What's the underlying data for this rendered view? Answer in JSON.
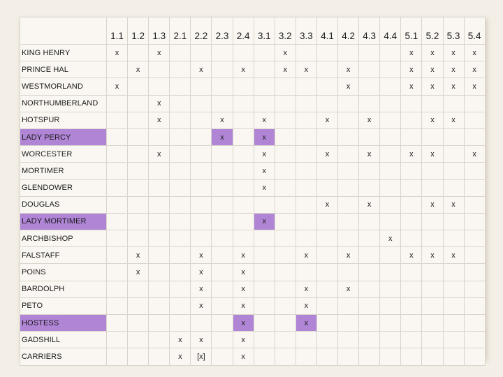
{
  "colors": {
    "highlight": "#b085d6",
    "grid": "#d9d4cc",
    "background": "#f3eee6"
  },
  "scenes": [
    "1.1",
    "1.2",
    "1.3",
    "2.1",
    "2.2",
    "2.3",
    "2.4",
    "3.1",
    "3.2",
    "3.3",
    "4.1",
    "4.2",
    "4.3",
    "4.4",
    "5.1",
    "5.2",
    "5.3",
    "5.4"
  ],
  "characters": [
    {
      "name": "KING HENRY",
      "highlight": false,
      "marks": [
        "x",
        "",
        "x",
        "",
        "",
        "",
        "",
        "",
        "x",
        "",
        "",
        "",
        "",
        "",
        "x",
        "x",
        "x",
        "x"
      ]
    },
    {
      "name": "PRINCE HAL",
      "highlight": false,
      "marks": [
        "",
        "x",
        "",
        "",
        "x",
        "",
        "x",
        "",
        "x",
        "x",
        "",
        "x",
        "",
        "",
        "x",
        "x",
        "x",
        "x"
      ]
    },
    {
      "name": "WESTMORLAND",
      "highlight": false,
      "marks": [
        "x",
        "",
        "",
        "",
        "",
        "",
        "",
        "",
        "",
        "",
        "",
        "x",
        "",
        "",
        "x",
        "x",
        "x",
        "x"
      ]
    },
    {
      "name": "NORTHUMBERLAND",
      "highlight": false,
      "marks": [
        "",
        "",
        "x",
        "",
        "",
        "",
        "",
        "",
        "",
        "",
        "",
        "",
        "",
        "",
        "",
        "",
        "",
        ""
      ]
    },
    {
      "name": "HOTSPUR",
      "highlight": false,
      "marks": [
        "",
        "",
        "x",
        "",
        "",
        "x",
        "",
        "x",
        "",
        "",
        "x",
        "",
        "x",
        "",
        "",
        "x",
        "x",
        ""
      ]
    },
    {
      "name": "LADY PERCY",
      "highlight": true,
      "marks": [
        "",
        "",
        "",
        "",
        "",
        "x",
        "",
        "x",
        "",
        "",
        "",
        "",
        "",
        "",
        "",
        "",
        "",
        ""
      ]
    },
    {
      "name": "WORCESTER",
      "highlight": false,
      "marks": [
        "",
        "",
        "x",
        "",
        "",
        "",
        "",
        "x",
        "",
        "",
        "x",
        "",
        "x",
        "",
        "x",
        "x",
        "",
        "x"
      ]
    },
    {
      "name": "MORTIMER",
      "highlight": false,
      "marks": [
        "",
        "",
        "",
        "",
        "",
        "",
        "",
        "x",
        "",
        "",
        "",
        "",
        "",
        "",
        "",
        "",
        "",
        ""
      ]
    },
    {
      "name": "GLENDOWER",
      "highlight": false,
      "marks": [
        "",
        "",
        "",
        "",
        "",
        "",
        "",
        "x",
        "",
        "",
        "",
        "",
        "",
        "",
        "",
        "",
        "",
        ""
      ]
    },
    {
      "name": "DOUGLAS",
      "highlight": false,
      "marks": [
        "",
        "",
        "",
        "",
        "",
        "",
        "",
        "",
        "",
        "",
        "x",
        "",
        "x",
        "",
        "",
        "x",
        "x",
        ""
      ]
    },
    {
      "name": "LADY MORTIMER",
      "highlight": true,
      "marks": [
        "",
        "",
        "",
        "",
        "",
        "",
        "",
        "x",
        "",
        "",
        "",
        "",
        "",
        "",
        "",
        "",
        "",
        ""
      ]
    },
    {
      "name": "ARCHBISHOP",
      "highlight": false,
      "marks": [
        "",
        "",
        "",
        "",
        "",
        "",
        "",
        "",
        "",
        "",
        "",
        "",
        "",
        "x",
        "",
        "",
        "",
        ""
      ]
    },
    {
      "name": "FALSTAFF",
      "highlight": false,
      "marks": [
        "",
        "x",
        "",
        "",
        "x",
        "",
        "x",
        "",
        "",
        "x",
        "",
        "x",
        "",
        "",
        "x",
        "x",
        "x",
        ""
      ]
    },
    {
      "name": "POINS",
      "highlight": false,
      "marks": [
        "",
        "x",
        "",
        "",
        "x",
        "",
        "x",
        "",
        "",
        "",
        "",
        "",
        "",
        "",
        "",
        "",
        "",
        ""
      ]
    },
    {
      "name": "BARDOLPH",
      "highlight": false,
      "marks": [
        "",
        "",
        "",
        "",
        "x",
        "",
        "x",
        "",
        "",
        "x",
        "",
        "x",
        "",
        "",
        "",
        "",
        "",
        ""
      ]
    },
    {
      "name": "PETO",
      "highlight": false,
      "marks": [
        "",
        "",
        "",
        "",
        "x",
        "",
        "x",
        "",
        "",
        "x",
        "",
        "",
        "",
        "",
        "",
        "",
        "",
        ""
      ]
    },
    {
      "name": "HOSTESS",
      "highlight": true,
      "marks": [
        "",
        "",
        "",
        "",
        "",
        "",
        "x",
        "",
        "",
        "x",
        "",
        "",
        "",
        "",
        "",
        "",
        "",
        ""
      ]
    },
    {
      "name": "GADSHILL",
      "highlight": false,
      "marks": [
        "",
        "",
        "",
        "x",
        "x",
        "",
        "x",
        "",
        "",
        "",
        "",
        "",
        "",
        "",
        "",
        "",
        "",
        ""
      ]
    },
    {
      "name": "CARRIERS",
      "highlight": false,
      "marks": [
        "",
        "",
        "",
        "x",
        "[x]",
        "",
        "x",
        "",
        "",
        "",
        "",
        "",
        "",
        "",
        "",
        "",
        "",
        ""
      ]
    }
  ]
}
